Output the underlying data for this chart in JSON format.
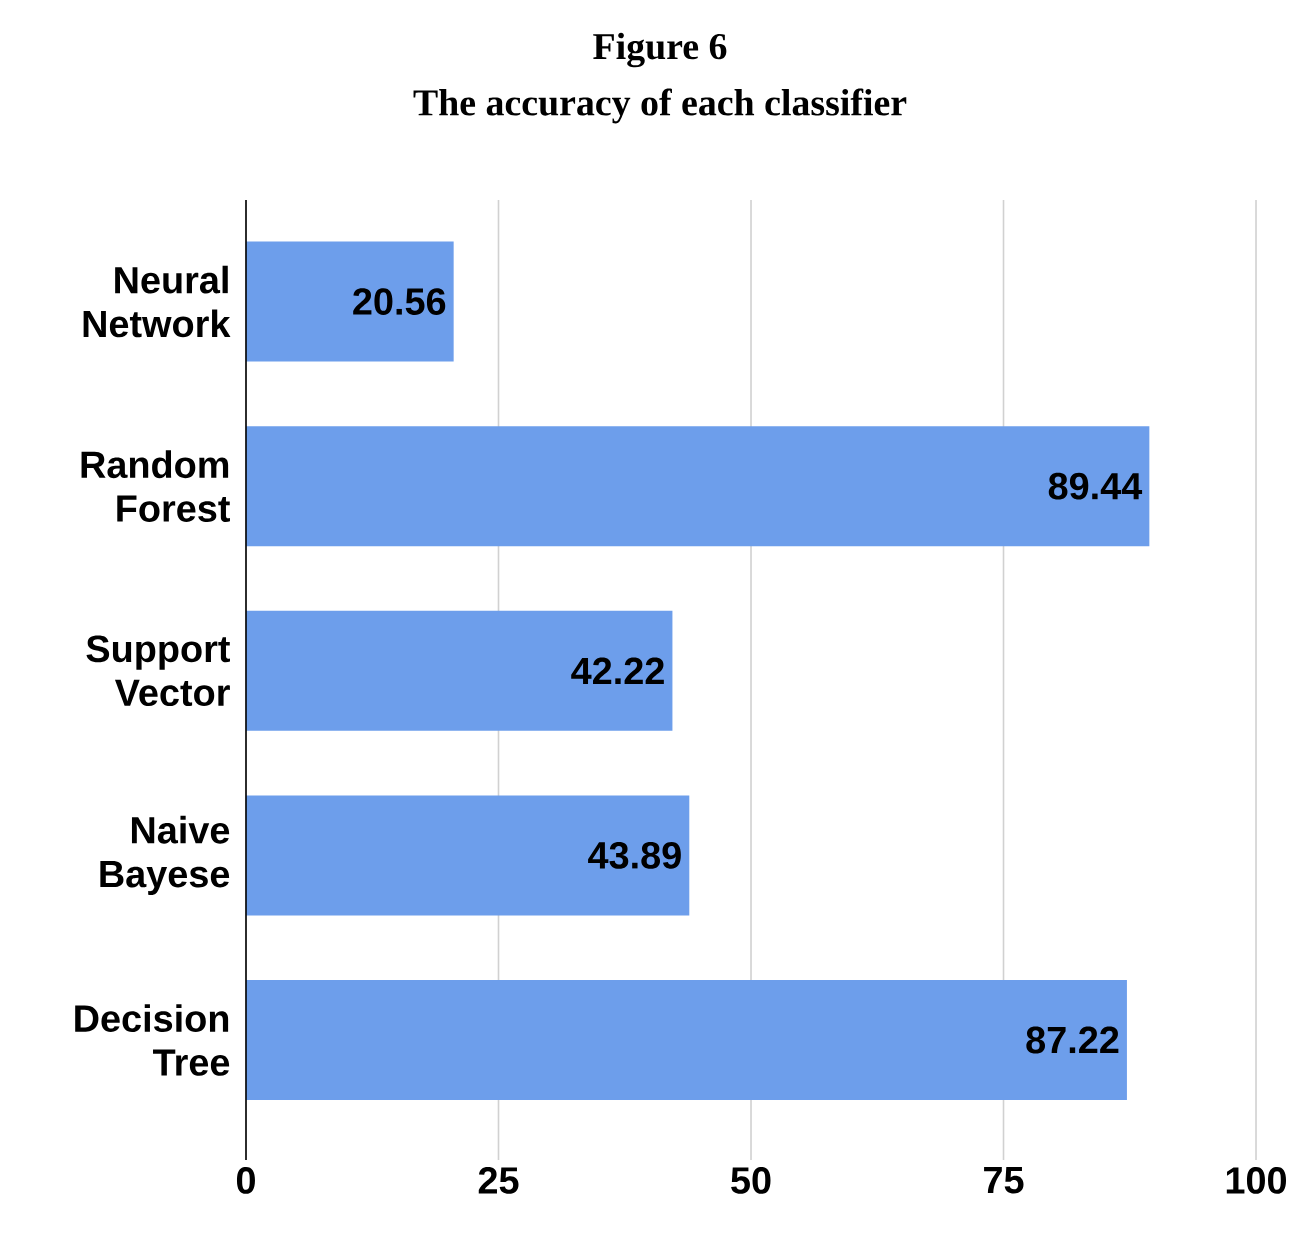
{
  "chart_data": {
    "type": "bar",
    "orientation": "horizontal",
    "title": "Figure 6",
    "subtitle": "The accuracy of each classifier",
    "categories": [
      "Neural Network",
      "Random Forest",
      "Support Vector",
      "Naive Bayese",
      "Decision Tree"
    ],
    "values": [
      20.56,
      89.44,
      42.22,
      43.89,
      87.22
    ],
    "color": "#6d9eeb",
    "data_labels": true,
    "xlim": [
      0,
      100
    ],
    "xticks": [
      0,
      25,
      50,
      75,
      100
    ],
    "grid": "x"
  }
}
